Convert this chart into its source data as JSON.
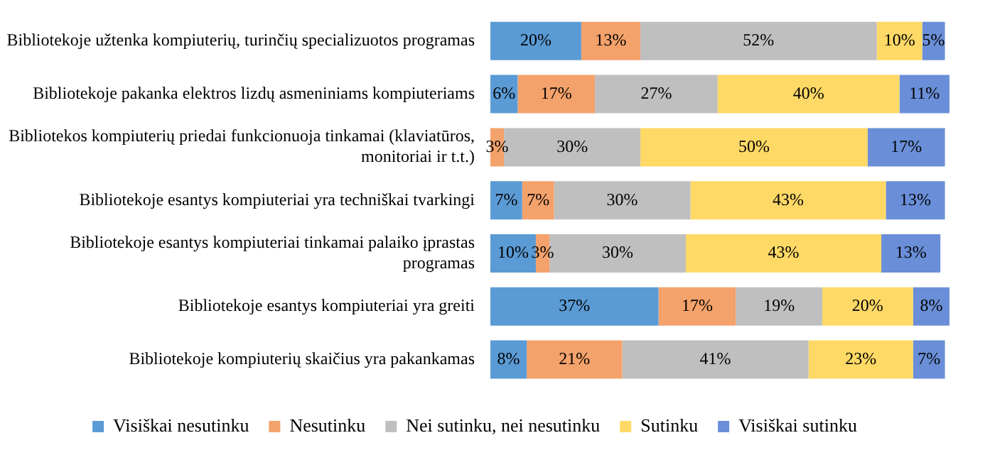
{
  "chart_data": {
    "type": "bar",
    "orientation": "horizontal",
    "stacked": true,
    "legend": "bottom",
    "grid": false,
    "categories": [
      "Bibliotekoje užtenka kompiuterių, turinčių specializuotos programas",
      "Bibliotekoje pakanka elektros lizdų asmeniniams kompiuteriams",
      "Bibliotekos kompiuterių priedai funkcionuoja tinkamai (klaviatūros, monitoriai ir t.t.)",
      "Bibliotekoje esantys kompiuteriai yra techniškai tvarkingi",
      "Bibliotekoje esantys kompiuteriai tinkamai palaiko įprastas programas",
      "Bibliotekoje esantys kompiuteriai yra greiti",
      "Bibliotekoje kompiuterių skaičius yra pakankamas"
    ],
    "series": [
      {
        "name": "Visiškai nesutinku",
        "color": "#5b9bd5",
        "values": [
          20,
          6,
          0,
          7,
          10,
          37,
          8
        ],
        "value_labels": [
          "20%",
          "6%",
          null,
          "7%",
          "10%",
          "37%",
          "8%"
        ]
      },
      {
        "name": "Nesutinku",
        "color": "#f4a26b",
        "values": [
          13,
          17,
          3,
          7,
          3,
          17,
          21
        ],
        "value_labels": [
          "13%",
          "17%",
          "3%",
          "7%",
          "3%",
          "17%",
          "21%"
        ]
      },
      {
        "name": "Nei sutinku, nei nesutinku",
        "color": "#bfbfbf",
        "values": [
          52,
          27,
          30,
          30,
          30,
          19,
          41
        ],
        "value_labels": [
          "52%",
          "27%",
          "30%",
          "30%",
          "30%",
          "19%",
          "41%"
        ]
      },
      {
        "name": "Sutinku",
        "color": "#ffd966",
        "values": [
          10,
          40,
          50,
          43,
          43,
          20,
          23
        ],
        "value_labels": [
          "10%",
          "40%",
          "50%",
          "43%",
          "43%",
          "20%",
          "23%"
        ]
      },
      {
        "name": "Visiškai sutinku",
        "color": "#6a8fd8",
        "values": [
          5,
          11,
          17,
          13,
          13,
          8,
          7
        ],
        "value_labels": [
          "5%",
          "11%",
          "17%",
          "13%",
          "13%",
          "8%",
          "7%"
        ]
      }
    ]
  }
}
